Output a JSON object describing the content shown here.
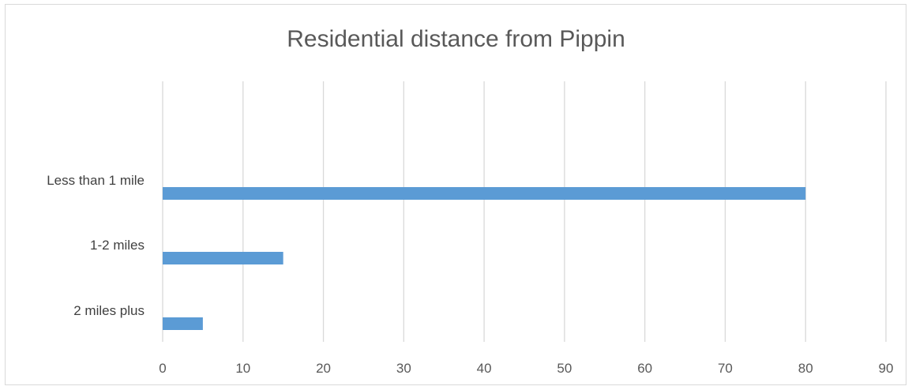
{
  "chart_data": {
    "type": "bar",
    "orientation": "horizontal",
    "title": "Residential distance from Pippin",
    "xlabel": "",
    "ylabel": "",
    "categories": [
      "Less than 1 mile",
      "1-2 miles",
      "2 miles plus"
    ],
    "values": [
      80,
      15,
      5
    ],
    "xlim": [
      0,
      90
    ],
    "xticks": [
      0,
      10,
      20,
      30,
      40,
      50,
      60,
      70,
      80,
      90
    ],
    "grid": "vertical",
    "legend": "none",
    "bar_color": "#5b9bd5",
    "grid_color": "#d9d9d9"
  }
}
